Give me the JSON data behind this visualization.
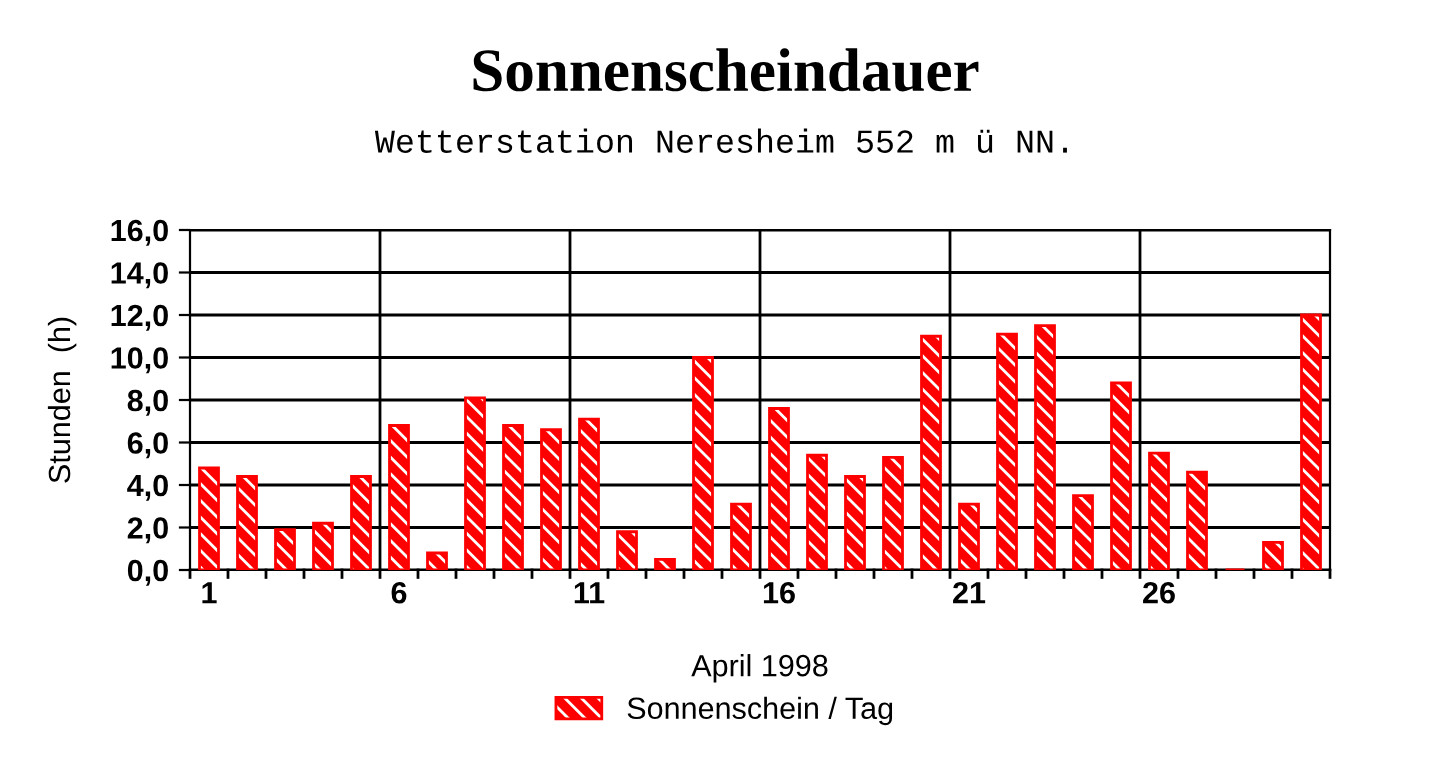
{
  "chart_data": {
    "type": "bar",
    "title": "Sonnenscheindauer",
    "subtitle": "Wetterstation Neresheim 552 m ü NN.",
    "xlabel": "April 1998",
    "ylabel": "Stunden  (h)",
    "categories": [
      "1",
      null,
      null,
      null,
      null,
      "6",
      null,
      null,
      null,
      null,
      "11",
      null,
      null,
      null,
      null,
      "16",
      null,
      null,
      null,
      null,
      "21",
      null,
      null,
      null,
      null,
      "26",
      null,
      null,
      null,
      null
    ],
    "series": [
      {
        "name": "Sonnenschein / Tag",
        "color": "#ff0000",
        "values": [
          4.8,
          4.4,
          1.9,
          2.2,
          4.4,
          6.8,
          0.8,
          8.1,
          6.8,
          6.6,
          7.1,
          1.8,
          0.5,
          10.0,
          3.1,
          7.6,
          5.4,
          4.4,
          5.3,
          11.0,
          3.1,
          11.1,
          11.5,
          3.5,
          8.8,
          5.5,
          4.6,
          0,
          1.3,
          12.0
        ]
      }
    ],
    "ylim": [
      0,
      16
    ],
    "yticks": [
      {
        "value": 0,
        "label": "0,0"
      },
      {
        "value": 2,
        "label": "2,0"
      },
      {
        "value": 4,
        "label": "4,0"
      },
      {
        "value": 6,
        "label": "6,0"
      },
      {
        "value": 8,
        "label": "8,0"
      },
      {
        "value": 10,
        "label": "10,0"
      },
      {
        "value": 12,
        "label": "12,0"
      },
      {
        "value": 14,
        "label": "14,0"
      },
      {
        "value": 16,
        "label": "16,0"
      }
    ],
    "grid": true,
    "legend": "bottom"
  }
}
